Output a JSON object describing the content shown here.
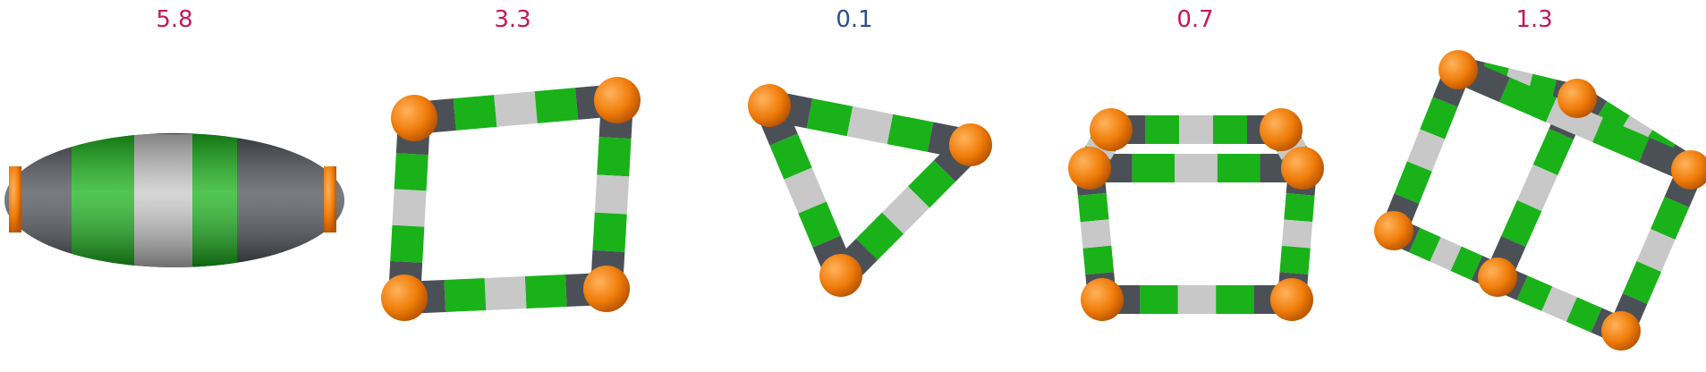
{
  "panels": [
    {
      "value": "5.8",
      "value_color": "#c2185b",
      "shape": "flat-ring-side-view"
    },
    {
      "value": "3.3",
      "value_color": "#c2185b",
      "shape": "square-cycle"
    },
    {
      "value": "0.1",
      "value_color": "#2a4f8f",
      "shape": "triangle-cycle"
    },
    {
      "value": "0.7",
      "value_color": "#c2185b",
      "shape": "cube-cage"
    },
    {
      "value": "1.3",
      "value_color": "#c2185b",
      "shape": "twisted-cage"
    }
  ],
  "colors": {
    "vertex": "#f07d0a",
    "tube_dark": "#4b5057",
    "tube_green": "#19b219",
    "tube_light": "#c8c8c8"
  }
}
